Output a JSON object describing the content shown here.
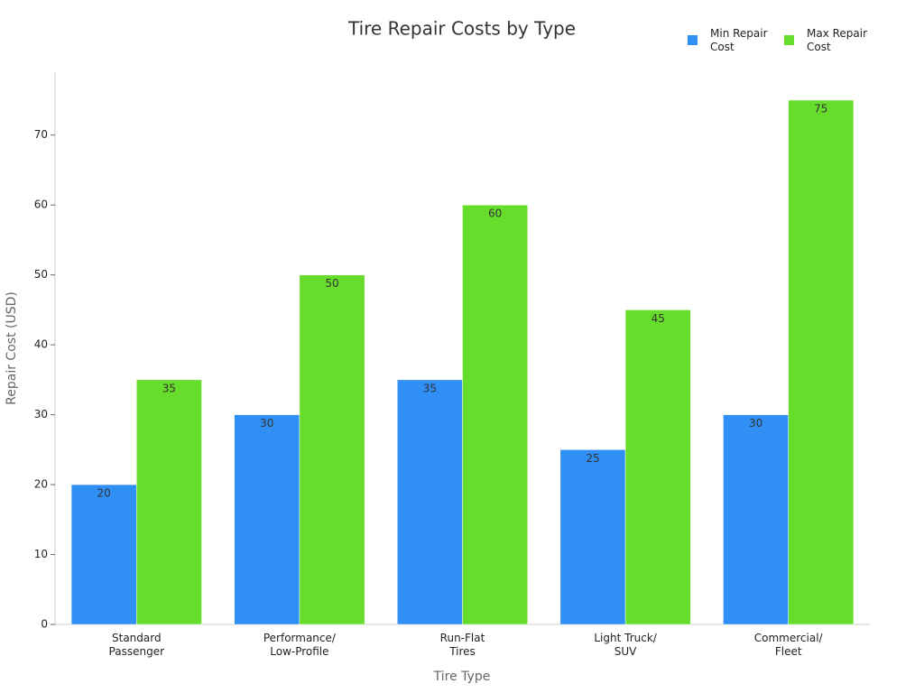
{
  "chart_data": {
    "type": "bar",
    "title": "Tire Repair Costs by Type",
    "x_label": "Tire Type",
    "y_label": "Repair Cost (USD)",
    "categories": [
      "Standard\nPassenger",
      "Performance/\nLow-Profile",
      "Run-Flat\nTires",
      "Light Truck/\nSUV",
      "Commercial/\nFleet"
    ],
    "series": [
      {
        "name": "Min Repair\nCost",
        "color": "#2f8ff5",
        "values": [
          20,
          30,
          35,
          25,
          30
        ]
      },
      {
        "name": "Max Repair\nCost",
        "color": "#66dd2a",
        "values": [
          35,
          50,
          60,
          45,
          75
        ]
      }
    ],
    "ylim": [
      0,
      79
    ],
    "yticks": [
      0,
      10,
      20,
      30,
      40,
      50,
      60,
      70
    ],
    "grid": false,
    "legend": "top-right"
  }
}
